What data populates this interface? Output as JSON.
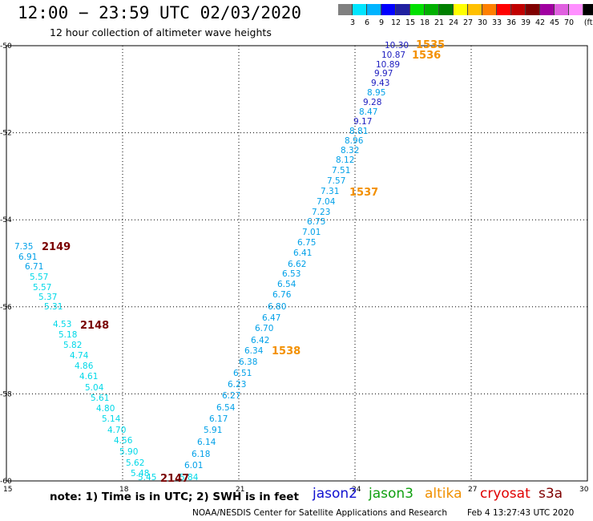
{
  "header": {
    "title": "12:00 − 23:59 UTC 02/03/2020",
    "subtitle": "12 hour collection of altimeter wave heights"
  },
  "colorbar": {
    "colors": [
      "#808080",
      "#00e5ff",
      "#00b4ff",
      "#0000ff",
      "#2020a0",
      "#00e000",
      "#00b000",
      "#008000",
      "#ffff00",
      "#ffc000",
      "#ff8000",
      "#ff0000",
      "#c00000",
      "#800000",
      "#a000a0",
      "#e060e0",
      "#ff90ff",
      "#000000"
    ],
    "labels": [
      "3",
      "6",
      "9",
      "12",
      "15",
      "18",
      "21",
      "24",
      "27",
      "30",
      "33",
      "36",
      "39",
      "42",
      "45",
      "70",
      "(ft)"
    ]
  },
  "map": {
    "x_ticks": [
      "15",
      "18",
      "21",
      "24",
      "27",
      "30"
    ],
    "y_ticks": [
      "-50",
      "-52",
      "-54",
      "-56",
      "-58",
      "-60"
    ]
  },
  "passes": [
    {
      "id": "1535",
      "color": "#f39000"
    },
    {
      "id": "1536",
      "color": "#f39000"
    },
    {
      "id": "1537",
      "color": "#f39000"
    },
    {
      "id": "1538",
      "color": "#f39000"
    },
    {
      "id": "2149",
      "color": "#7a0000"
    },
    {
      "id": "2148",
      "color": "#7a0000"
    },
    {
      "id": "2147",
      "color": "#7a0000"
    }
  ],
  "observations": [
    {
      "v": "10.30",
      "c": "#2020c0"
    },
    {
      "v": "10.87",
      "c": "#2020c0"
    },
    {
      "v": "10.89",
      "c": "#2020c0"
    },
    {
      "v": "9.97",
      "c": "#2020c0"
    },
    {
      "v": "9.43",
      "c": "#2020c0"
    },
    {
      "v": "8.95",
      "c": "#00a0e8"
    },
    {
      "v": "9.28",
      "c": "#2020c0"
    },
    {
      "v": "8.47",
      "c": "#00a0e8"
    },
    {
      "v": "9.17",
      "c": "#2020c0"
    },
    {
      "v": "8.81",
      "c": "#00a0e8"
    },
    {
      "v": "8.96",
      "c": "#00a0e8"
    },
    {
      "v": "8.32",
      "c": "#00a0e8"
    },
    {
      "v": "8.12",
      "c": "#00a0e8"
    },
    {
      "v": "7.51",
      "c": "#00a0e8"
    },
    {
      "v": "7.57",
      "c": "#00a0e8"
    },
    {
      "v": "7.31",
      "c": "#00a0e8"
    },
    {
      "v": "7.04",
      "c": "#00a0e8"
    },
    {
      "v": "7.23",
      "c": "#00a0e8"
    },
    {
      "v": "6.75",
      "c": "#00a0e8"
    },
    {
      "v": "7.01",
      "c": "#00a0e8"
    },
    {
      "v": "6.75",
      "c": "#00a0e8"
    },
    {
      "v": "6.41",
      "c": "#00a0e8"
    },
    {
      "v": "6.62",
      "c": "#00a0e8"
    },
    {
      "v": "6.53",
      "c": "#00a0e8"
    },
    {
      "v": "6.54",
      "c": "#00a0e8"
    },
    {
      "v": "6.76",
      "c": "#00a0e8"
    },
    {
      "v": "6.80",
      "c": "#00a0e8"
    },
    {
      "v": "6.47",
      "c": "#00a0e8"
    },
    {
      "v": "6.70",
      "c": "#00a0e8"
    },
    {
      "v": "6.42",
      "c": "#00a0e8"
    },
    {
      "v": "6.34",
      "c": "#00a0e8"
    },
    {
      "v": "6.38",
      "c": "#00a0e8"
    },
    {
      "v": "6.51",
      "c": "#00a0e8"
    },
    {
      "v": "6.23",
      "c": "#00a0e8"
    },
    {
      "v": "6.27",
      "c": "#00a0e8"
    },
    {
      "v": "6.54",
      "c": "#00a0e8"
    },
    {
      "v": "6.17",
      "c": "#00a0e8"
    },
    {
      "v": "5.91",
      "c": "#00a0e8"
    },
    {
      "v": "6.14",
      "c": "#00a0e8"
    },
    {
      "v": "6.18",
      "c": "#00a0e8"
    },
    {
      "v": "6.01",
      "c": "#00a0e8"
    },
    {
      "v": "5.84",
      "c": "#00d8e8"
    },
    {
      "v": "7.35",
      "c": "#00a0e8"
    },
    {
      "v": "6.91",
      "c": "#00a0e8"
    },
    {
      "v": "6.71",
      "c": "#00a0e8"
    },
    {
      "v": "5.57",
      "c": "#00d8e8"
    },
    {
      "v": "5.57",
      "c": "#00d8e8"
    },
    {
      "v": "5.37",
      "c": "#00d8e8"
    },
    {
      "v": "5.31",
      "c": "#00d8e8"
    },
    {
      "v": "4.53",
      "c": "#00d8e8"
    },
    {
      "v": "5.18",
      "c": "#00d8e8"
    },
    {
      "v": "5.82",
      "c": "#00d8e8"
    },
    {
      "v": "4.74",
      "c": "#00d8e8"
    },
    {
      "v": "4.86",
      "c": "#00d8e8"
    },
    {
      "v": "4.61",
      "c": "#00d8e8"
    },
    {
      "v": "5.04",
      "c": "#00d8e8"
    },
    {
      "v": "5.61",
      "c": "#00d8e8"
    },
    {
      "v": "4.80",
      "c": "#00d8e8"
    },
    {
      "v": "5.14",
      "c": "#00d8e8"
    },
    {
      "v": "4.70",
      "c": "#00d8e8"
    },
    {
      "v": "4.56",
      "c": "#00d8e8"
    },
    {
      "v": "5.90",
      "c": "#00d8e8"
    },
    {
      "v": "5.62",
      "c": "#00d8e8"
    },
    {
      "v": "5.48",
      "c": "#00d8e8"
    },
    {
      "v": "5.45",
      "c": "#00d8e8"
    }
  ],
  "footer": {
    "note": "note: 1) Time is in UTC; 2) SWH is in feet",
    "legend": [
      {
        "name": "jason2",
        "color": "#1010d0"
      },
      {
        "name": "jason3",
        "color": "#10a010"
      },
      {
        "name": "altika",
        "color": "#f09000"
      },
      {
        "name": "cryosat",
        "color": "#e00000"
      },
      {
        "name": "s3a",
        "color": "#800000"
      }
    ],
    "credit": "NOAA/NESDIS Center for Satellite Applications and Research",
    "timestamp": "Feb  4 13:27:43 UTC 2020"
  }
}
